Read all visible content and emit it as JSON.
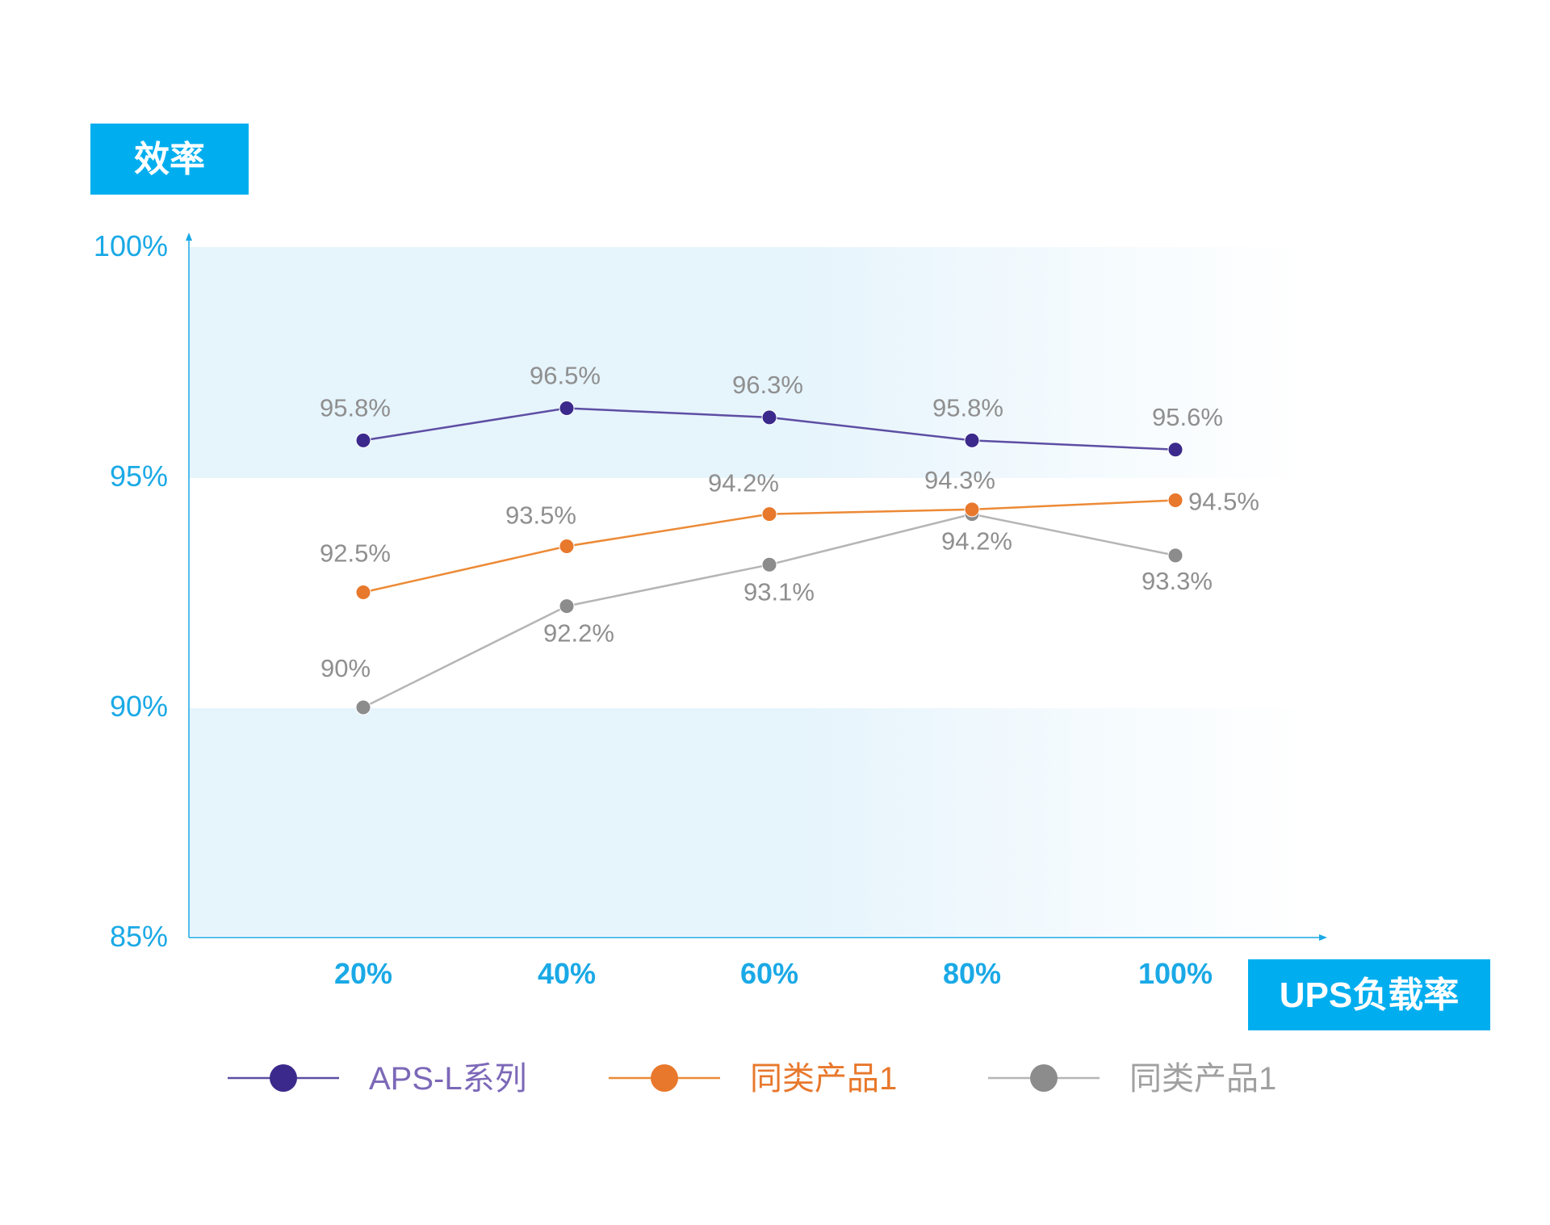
{
  "chart_data": {
    "type": "line",
    "ylabel": "效率",
    "xlabel": "UPS负载率",
    "categories": [
      "20%",
      "40%",
      "60%",
      "80%",
      "100%"
    ],
    "ylim": [
      85,
      100
    ],
    "yticks": [
      "100%",
      "95%",
      "90%",
      "85%"
    ],
    "ytick_values": [
      100,
      95,
      90,
      85
    ],
    "grid": false,
    "legend_position": "bottom",
    "series": [
      {
        "name": "APS-L系列",
        "color": "#3b2a8c",
        "text_color": "#7c68b8",
        "line_color": "#5d4ea3",
        "values": [
          95.8,
          96.5,
          96.3,
          95.8,
          95.6
        ],
        "labels": [
          "95.8%",
          "96.5%",
          "96.3%",
          "95.8%",
          "95.6%"
        ]
      },
      {
        "name": "同类产品1",
        "color": "#e8782c",
        "text_color": "#e8782c",
        "line_color": "#ec8a36",
        "values": [
          92.5,
          93.5,
          94.2,
          94.3,
          94.5
        ],
        "labels": [
          "92.5%",
          "93.5%",
          "94.2%",
          "94.3%",
          "94.5%"
        ]
      },
      {
        "name": "同类产品1",
        "color": "#8c8c8c",
        "text_color": "#a0a0a0",
        "line_color": "#b5b5b5",
        "values": [
          90,
          92.2,
          93.1,
          94.2,
          93.3
        ],
        "labels": [
          "90%",
          "92.2%",
          "93.1%",
          "94.2%",
          "93.3%"
        ]
      }
    ]
  },
  "colors": {
    "accent": "#00aeef",
    "band": "#e6f4fc",
    "axis": "#1aa9e6"
  }
}
